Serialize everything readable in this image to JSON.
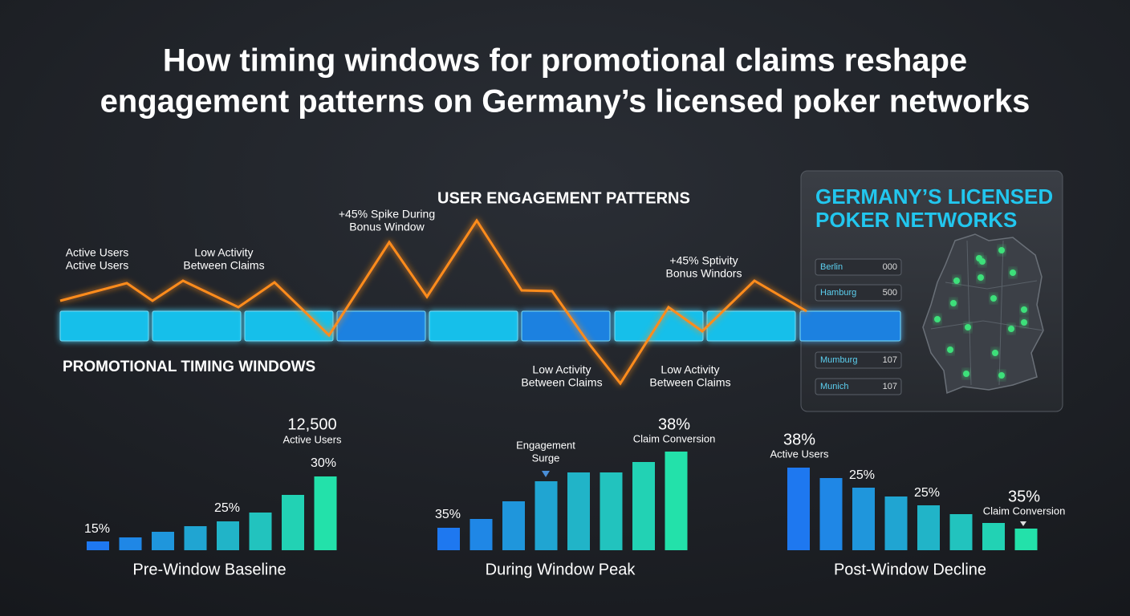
{
  "title": [
    "How timing windows for promotional claims reshape",
    "engagement patterns on Germany’s licensed poker networks"
  ],
  "engagement": {
    "heading": "USER ENGAGEMENT PATTERNS",
    "windows_label": "PROMOTIONAL TIMING WINDOWS",
    "line_color": "#ff8c1a",
    "line": {
      "x": [
        0,
        83,
        115,
        153,
        222,
        267,
        335,
        410,
        457,
        519,
        575,
        613,
        660,
        698,
        758,
        800,
        865,
        930
      ],
      "values": [
        105,
        127,
        105,
        130,
        97,
        128,
        62,
        178,
        110,
        205,
        118,
        117,
        50,
        2,
        97,
        67,
        130,
        92
      ]
    },
    "windows": [
      "#19c8f5",
      "#19c8f5",
      "#19c8f5",
      "#1f86ea",
      "#19c8f5",
      "#1f86ea",
      "#19c8f5",
      "#19c8f5",
      "#1f86ea"
    ],
    "annotations": [
      {
        "lines": [
          "Active Users",
          "Active Users"
        ]
      },
      {
        "lines": [
          "Low Activity",
          "Between Claims"
        ]
      },
      {
        "lines": [
          "+45% Spike During",
          "Bonus Window"
        ]
      },
      {
        "lines": [
          "+45% Sptivity",
          "Bonus Windors"
        ]
      },
      {
        "lines": [
          "Low Activity",
          "Between Claims"
        ]
      },
      {
        "lines": [
          "Low Activity",
          "Between Claims"
        ]
      }
    ]
  },
  "panel": {
    "title": [
      "GERMANY’S LICENSED",
      "POKER NETWORKS"
    ],
    "cities": [
      {
        "name": "Berlin",
        "value": "000"
      },
      {
        "name": "Hamburg",
        "value": "500"
      },
      {
        "name": "Mumburg",
        "value": "107"
      },
      {
        "name": "Munich",
        "value": "107"
      }
    ]
  },
  "groups": [
    {
      "caption": "Pre-Window Baseline",
      "values": [
        11,
        16,
        23,
        30,
        36,
        47,
        69,
        92
      ],
      "labels": [
        {
          "lines": [
            "15%"
          ]
        },
        {
          "lines": [
            "25%"
          ]
        },
        {
          "lines": [
            "30%"
          ]
        },
        {
          "lines": [
            "12,500",
            "Active Users"
          ]
        }
      ]
    },
    {
      "caption": "During Window Peak",
      "values": [
        28,
        39,
        61,
        86,
        97,
        97,
        110,
        123
      ],
      "labels": [
        {
          "lines": [
            "35%"
          ]
        },
        {
          "lines": [
            "Engagement",
            "Surge"
          ]
        },
        {
          "lines": [
            "38%",
            "Claim Conversion"
          ]
        }
      ]
    },
    {
      "caption": "Post-Window Decline",
      "values": [
        103,
        90,
        78,
        67,
        56,
        45,
        34,
        27
      ],
      "labels": [
        {
          "lines": [
            "38%",
            "Active Users"
          ]
        },
        {
          "lines": [
            "25%"
          ]
        },
        {
          "lines": [
            "25%"
          ]
        },
        {
          "lines": [
            "35%",
            "Claim Conversion"
          ]
        }
      ]
    }
  ]
}
